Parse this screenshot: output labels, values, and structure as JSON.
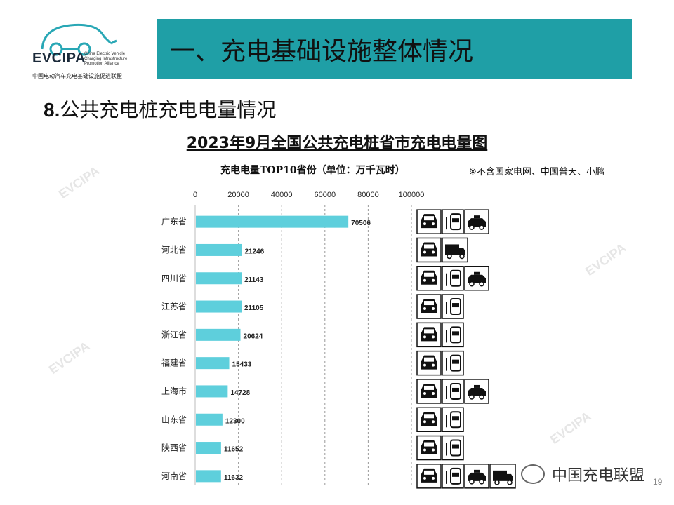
{
  "logo": {
    "name": "EVCIPA",
    "en_lines": [
      "China Electric Vehicle",
      "Charging Infrastructure",
      "Promotion Alliance"
    ],
    "cn": "中国电动汽车充电基础设施促进联盟"
  },
  "header": {
    "title": "一、充电基础设施整体情况"
  },
  "section": {
    "number": "8.",
    "title": "公共充电桩充电电量情况"
  },
  "chart_title": "2023年9月全国公共充电桩省市充电电量图",
  "chart_data": {
    "type": "bar",
    "orientation": "horizontal",
    "title": "充电电量TOP10省份（单位：万千瓦时）",
    "categories": [
      "广东省",
      "河北省",
      "四川省",
      "江苏省",
      "浙江省",
      "福建省",
      "上海市",
      "山东省",
      "陕西省",
      "河南省"
    ],
    "values": [
      70506,
      21246,
      21143,
      21105,
      20624,
      15433,
      14728,
      12300,
      11652,
      11632
    ],
    "xlim": [
      0,
      100000
    ],
    "xticks": [
      "0",
      "20000",
      "40000",
      "60000",
      "80000",
      "100000"
    ],
    "bar_color": "#5ecfdc",
    "grid": "vertical dashed"
  },
  "note": "※不含国家电网、中国普天、小鹏",
  "vehicle_icons": [
    [
      "car-icon",
      "bus-icon",
      "taxi-icon"
    ],
    [
      "car-icon",
      "truck-icon"
    ],
    [
      "car-icon",
      "bus-icon",
      "taxi-icon"
    ],
    [
      "car-icon",
      "bus-icon"
    ],
    [
      "car-icon",
      "bus-icon"
    ],
    [
      "car-icon",
      "bus-icon"
    ],
    [
      "car-icon",
      "bus-icon",
      "taxi-icon"
    ],
    [
      "car-icon",
      "bus-icon"
    ],
    [
      "car-icon",
      "bus-icon"
    ],
    [
      "car-icon",
      "bus-icon",
      "taxi-icon",
      "truck-icon"
    ]
  ],
  "watermark": "中国充电联盟",
  "page_number": "19"
}
